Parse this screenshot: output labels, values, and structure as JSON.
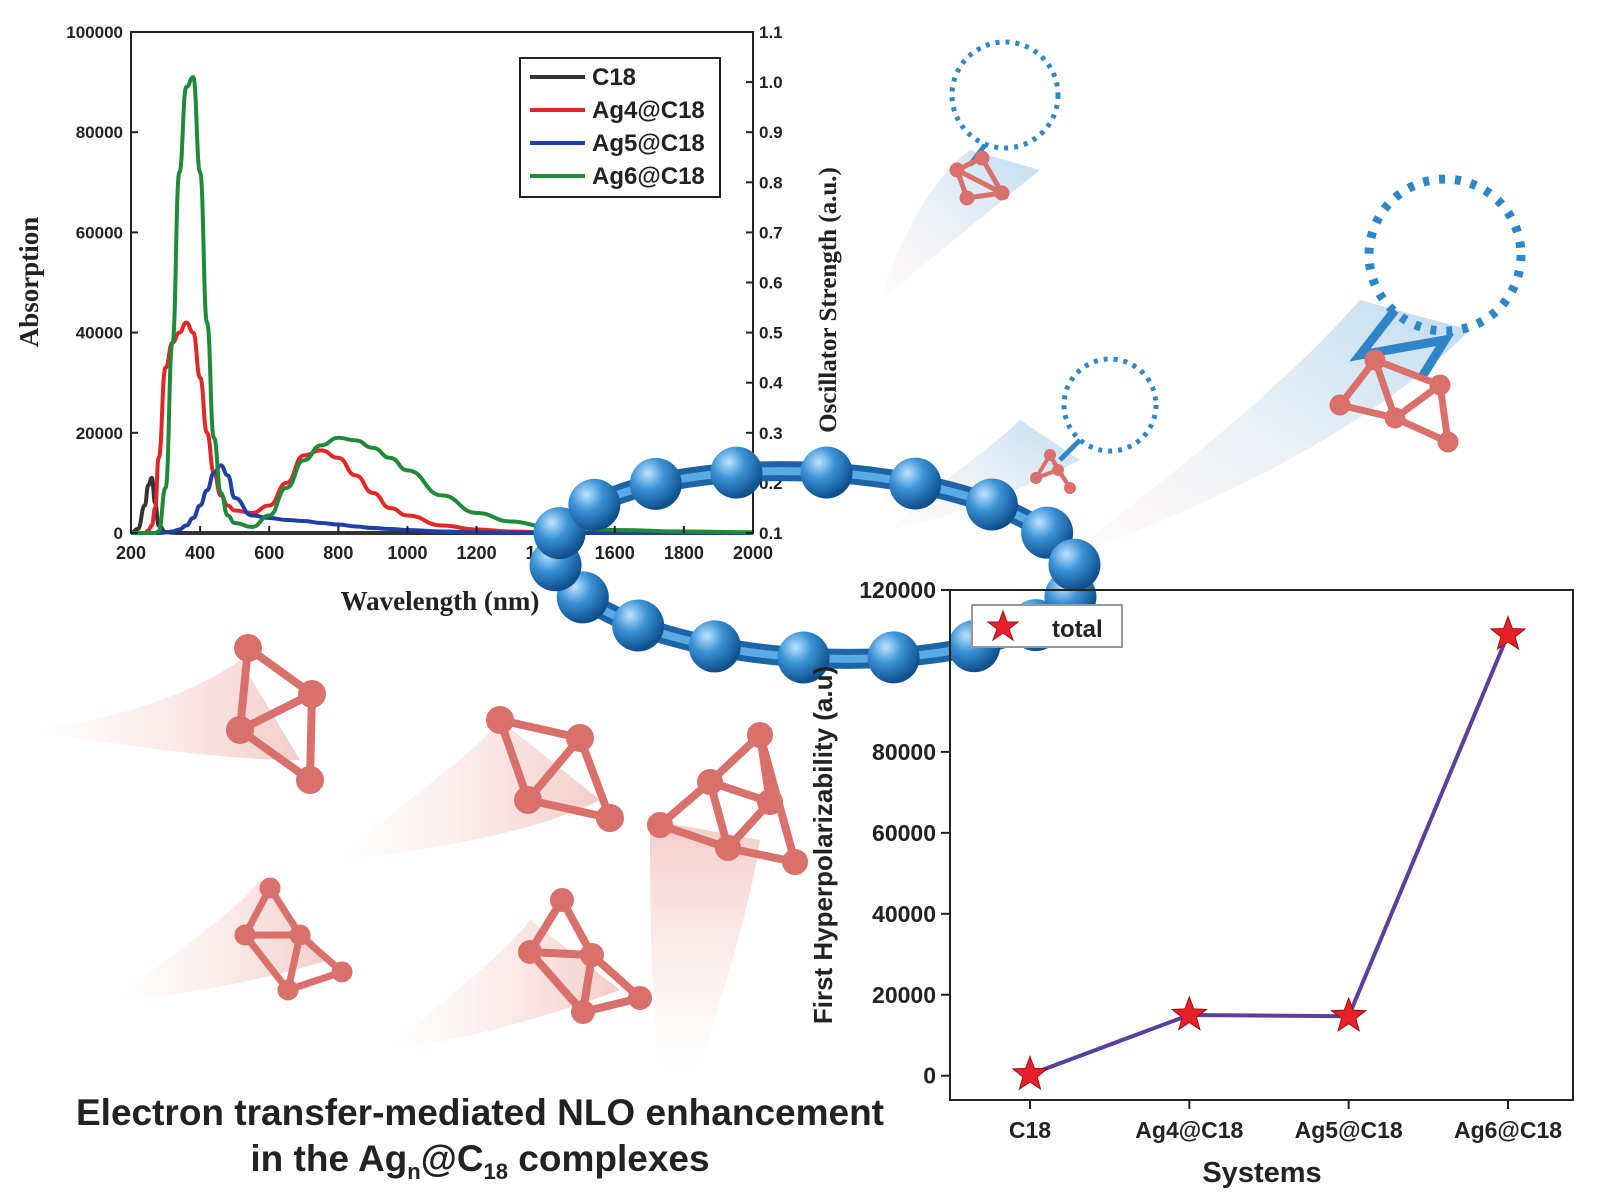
{
  "caption": {
    "line1": "Electron transfer-mediated NLO enhancement",
    "line2_pre": "in the Ag",
    "line2_sub1": "n",
    "line2_mid": "@C",
    "line2_sub2": "18",
    "line2_post": " complexes"
  },
  "chart_data": [
    {
      "type": "line",
      "xlabel": "Wavelength (nm)",
      "ylabel": "Absorption",
      "y2label": "Oscillator Strength (a.u.)",
      "xlim": [
        200,
        2000
      ],
      "ylim": [
        0,
        100000
      ],
      "y2lim": [
        0.1,
        1.1
      ],
      "xticks": [
        "200",
        "400",
        "600",
        "800",
        "1000",
        "1200",
        "1400",
        "1600",
        "1800",
        "2000"
      ],
      "yticks": [
        "0",
        "20000",
        "40000",
        "60000",
        "80000",
        "100000"
      ],
      "y2ticks": [
        "0.1",
        "0.2",
        "0.3",
        "0.4",
        "0.5",
        "0.6",
        "0.7",
        "0.8",
        "0.9",
        "1.0",
        "1.1"
      ],
      "legend_position": "top-right",
      "x": [
        200,
        220,
        240,
        250,
        260,
        270,
        280,
        300,
        320,
        340,
        360,
        380,
        400,
        420,
        440,
        460,
        480,
        500,
        550,
        600,
        650,
        700,
        750,
        800,
        850,
        900,
        950,
        1000,
        1100,
        1200,
        1300,
        1400,
        1600,
        1800,
        2000
      ],
      "series": [
        {
          "name": "C18",
          "color": "#333333",
          "values": [
            0,
            800,
            5500,
            9500,
            11000,
            6000,
            1500,
            200,
            50,
            0,
            0,
            0,
            0,
            0,
            0,
            0,
            0,
            0,
            0,
            0,
            0,
            0,
            0,
            0,
            0,
            0,
            0,
            0,
            0,
            0,
            0,
            0,
            0,
            0,
            0
          ]
        },
        {
          "name": "Ag4@C18",
          "color": "#e32626",
          "values": [
            0,
            0,
            0,
            500,
            1500,
            5000,
            15000,
            33000,
            38000,
            40000,
            42000,
            40000,
            31000,
            20000,
            12000,
            7500,
            5500,
            4500,
            4000,
            5500,
            10000,
            15500,
            16500,
            15000,
            11500,
            8000,
            5000,
            3500,
            1500,
            700,
            300,
            150,
            0,
            0,
            0
          ]
        },
        {
          "name": "Ag5@C18",
          "color": "#1f3fa8",
          "values": [
            0,
            0,
            0,
            0,
            0,
            0,
            0,
            100,
            300,
            700,
            1500,
            3000,
            5500,
            8500,
            12000,
            13500,
            11500,
            7000,
            3500,
            3000,
            2600,
            2400,
            2000,
            1700,
            1300,
            1000,
            800,
            600,
            300,
            150,
            60,
            20,
            0,
            0,
            0
          ]
        },
        {
          "name": "Ag6@C18",
          "color": "#1f8a3a",
          "values": [
            0,
            0,
            0,
            0,
            0,
            0,
            300,
            9000,
            38000,
            72000,
            89000,
            91000,
            72000,
            42000,
            19000,
            8000,
            3500,
            2000,
            1200,
            3500,
            9000,
            14500,
            17500,
            19000,
            18500,
            17000,
            15000,
            12500,
            7500,
            4000,
            2300,
            1300,
            600,
            300,
            150
          ]
        }
      ]
    },
    {
      "type": "line",
      "xlabel": "Systems",
      "ylabel": "First Hyperpolarizability (a.u)",
      "legend": "total",
      "ylim": [
        -6000,
        120000
      ],
      "yticks": [
        "0",
        "20000",
        "40000",
        "60000",
        "80000",
        "120000"
      ],
      "categories": [
        "C18",
        "Ag4@C18",
        "Ag5@C18",
        "Ag6@C18"
      ],
      "series": [
        {
          "name": "total",
          "color": "#5b3f9e",
          "marker_color": "#e8202a",
          "values": [
            300,
            15000,
            14700,
            109000
          ]
        }
      ]
    }
  ],
  "colors": {
    "ring": "#2e86c9",
    "cluster": "#d9706b",
    "cluster_light": "#f2c4c0"
  }
}
